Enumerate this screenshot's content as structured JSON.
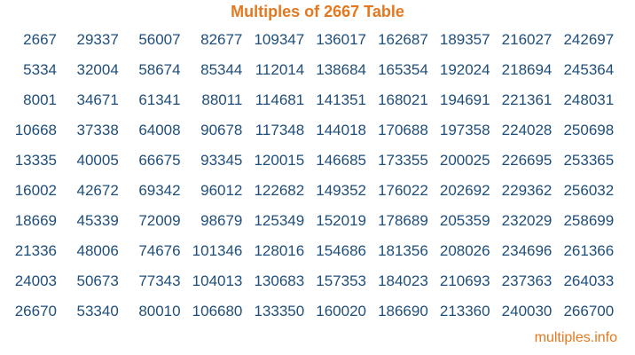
{
  "title": "Multiples of 2667 Table",
  "footer": "multiples.info",
  "table": {
    "rows": [
      [
        "2667",
        "29337",
        "56007",
        "82677",
        "109347",
        "136017",
        "162687",
        "189357",
        "216027",
        "242697"
      ],
      [
        "5334",
        "32004",
        "58674",
        "85344",
        "112014",
        "138684",
        "165354",
        "192024",
        "218694",
        "245364"
      ],
      [
        "8001",
        "34671",
        "61341",
        "88011",
        "114681",
        "141351",
        "168021",
        "194691",
        "221361",
        "248031"
      ],
      [
        "10668",
        "37338",
        "64008",
        "90678",
        "117348",
        "144018",
        "170688",
        "197358",
        "224028",
        "250698"
      ],
      [
        "13335",
        "40005",
        "66675",
        "93345",
        "120015",
        "146685",
        "173355",
        "200025",
        "226695",
        "253365"
      ],
      [
        "16002",
        "42672",
        "69342",
        "96012",
        "122682",
        "149352",
        "176022",
        "202692",
        "229362",
        "256032"
      ],
      [
        "18669",
        "45339",
        "72009",
        "98679",
        "125349",
        "152019",
        "178689",
        "205359",
        "232029",
        "258699"
      ],
      [
        "21336",
        "48006",
        "74676",
        "101346",
        "128016",
        "154686",
        "181356",
        "208026",
        "234696",
        "261366"
      ],
      [
        "24003",
        "50673",
        "77343",
        "104013",
        "130683",
        "157353",
        "184023",
        "210693",
        "237363",
        "264033"
      ],
      [
        "26670",
        "53340",
        "80010",
        "106680",
        "133350",
        "160020",
        "186690",
        "213360",
        "240030",
        "266700"
      ]
    ]
  },
  "colors": {
    "accent": "#e5781f",
    "numbers": "#1f4e79"
  }
}
